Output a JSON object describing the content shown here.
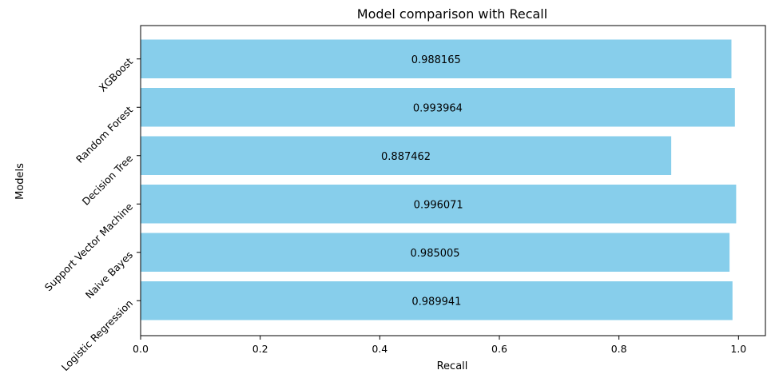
{
  "chart_data": {
    "type": "bar",
    "orientation": "horizontal",
    "title": "Model comparison with Recall",
    "xlabel": "Recall",
    "ylabel": "Models",
    "categories": [
      "Logistic Regression",
      "Naive Bayes",
      "Support Vector Machine",
      "Decision Tree",
      "Random Forest",
      "XGBoost"
    ],
    "values": [
      0.989941,
      0.985005,
      0.996071,
      0.887462,
      0.993964,
      0.988165
    ],
    "value_labels": [
      "0.989941",
      "0.985005",
      "0.996071",
      "0.887462",
      "0.993964",
      "0.988165"
    ],
    "xlim": [
      0.0,
      1.045
    ],
    "xticks": [
      0.0,
      0.2,
      0.4,
      0.6,
      0.8,
      1.0
    ],
    "xtick_labels": [
      "0.0",
      "0.2",
      "0.4",
      "0.6",
      "0.8",
      "1.0"
    ],
    "bar_color": "#87CEEB",
    "grid": false,
    "legend": "none"
  }
}
